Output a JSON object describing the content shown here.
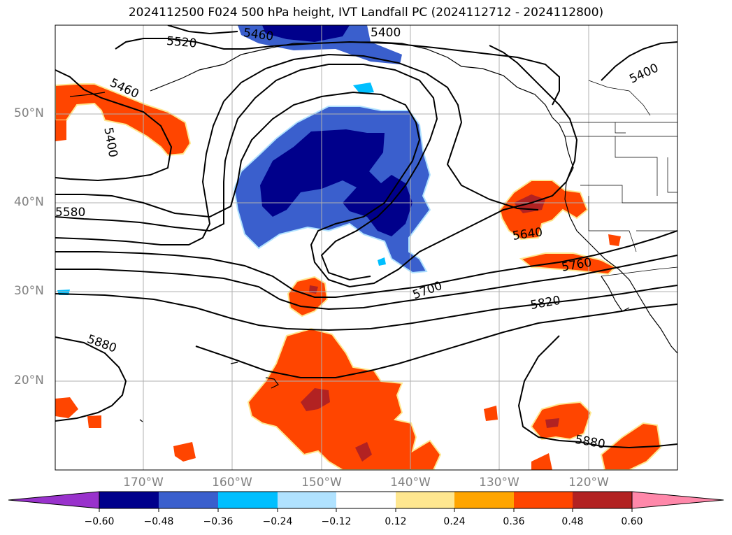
{
  "title": "2024112500 F024 500 hPa height, IVT Landfall PC (2024112712 - 2024112800)",
  "latitude_labels": [
    "50°N",
    "40°N",
    "30°N",
    "20°N"
  ],
  "longitude_labels": [
    "170°W",
    "160°W",
    "150°W",
    "140°W",
    "130°W",
    "120°W"
  ],
  "contour_labels": [
    "5460",
    "5400",
    "5520",
    "5460",
    "5400",
    "5580",
    "5640",
    "5760",
    "5700",
    "5820",
    "5880",
    "5880",
    "5400"
  ],
  "colorbar": {
    "ticks": [
      "−0.60",
      "−0.48",
      "−0.36",
      "−0.24",
      "−0.12",
      "0.12",
      "0.24",
      "0.36",
      "0.48",
      "0.60"
    ],
    "colors": [
      "#9932cc",
      "#00008b",
      "#3a5fcd",
      "#00bfff",
      "#b0e2ff",
      "#ffffff",
      "#ffe78f",
      "#ffa500",
      "#ff4500",
      "#b22222",
      "#ff88aa"
    ]
  },
  "colors": {
    "negative_strong": "#00008b",
    "negative": "#3a5fcd",
    "positive": "#ff4500",
    "positive_strong": "#b22222"
  }
}
